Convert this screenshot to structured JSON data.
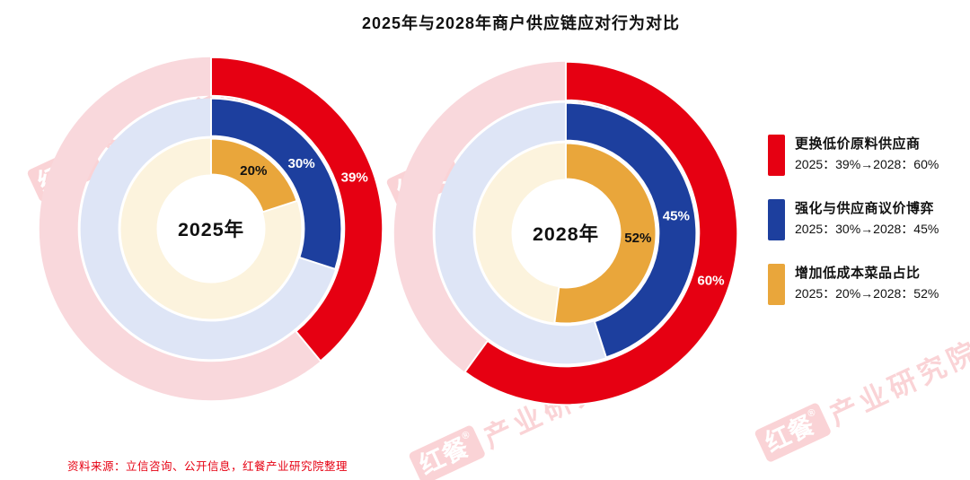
{
  "page": {
    "title": "2025年与2028年商户供应链应对行为对比",
    "source_note": "资料来源：立信咨询、公开信息，红餐产业研究院整理",
    "watermark": {
      "logo": "红餐",
      "reg": "®",
      "text": "产业研究院"
    }
  },
  "legend": {
    "items": [
      {
        "label": "更换低价原料供应商",
        "detail": "2025：39%→2028：60%",
        "color": "#e60012"
      },
      {
        "label": "强化与供应商议价博弈",
        "detail": "2025：30%→2028：45%",
        "color": "#1d3f9e"
      },
      {
        "label": "增加低成本菜品占比",
        "detail": "2025：20%→2028：52%",
        "color": "#e9a63b"
      }
    ]
  },
  "chart_data": [
    {
      "type": "donut",
      "center_label": "2025年",
      "start_angle_deg": 0,
      "direction": "clockwise",
      "rings": [
        {
          "series": "更换低价原料供应商",
          "value": 39,
          "unit": "%",
          "color": "#e60012",
          "track_color": "#f9d8dc",
          "label_color": "#ffffff"
        },
        {
          "series": "强化与供应商议价博弈",
          "value": 30,
          "unit": "%",
          "color": "#1d3f9e",
          "track_color": "#dee5f6",
          "label_color": "#ffffff"
        },
        {
          "series": "增加低成本菜品占比",
          "value": 20,
          "unit": "%",
          "color": "#e9a63b",
          "track_color": "#fcf3dd",
          "label_color": "#111111"
        }
      ]
    },
    {
      "type": "donut",
      "center_label": "2028年",
      "start_angle_deg": 0,
      "direction": "clockwise",
      "rings": [
        {
          "series": "更换低价原料供应商",
          "value": 60,
          "unit": "%",
          "color": "#e60012",
          "track_color": "#f9d8dc",
          "label_color": "#ffffff"
        },
        {
          "series": "强化与供应商议价博弈",
          "value": 45,
          "unit": "%",
          "color": "#1d3f9e",
          "track_color": "#dee5f6",
          "label_color": "#ffffff"
        },
        {
          "series": "增加低成本菜品占比",
          "value": 52,
          "unit": "%",
          "color": "#e9a63b",
          "track_color": "#fcf3dd",
          "label_color": "#111111"
        }
      ]
    }
  ]
}
